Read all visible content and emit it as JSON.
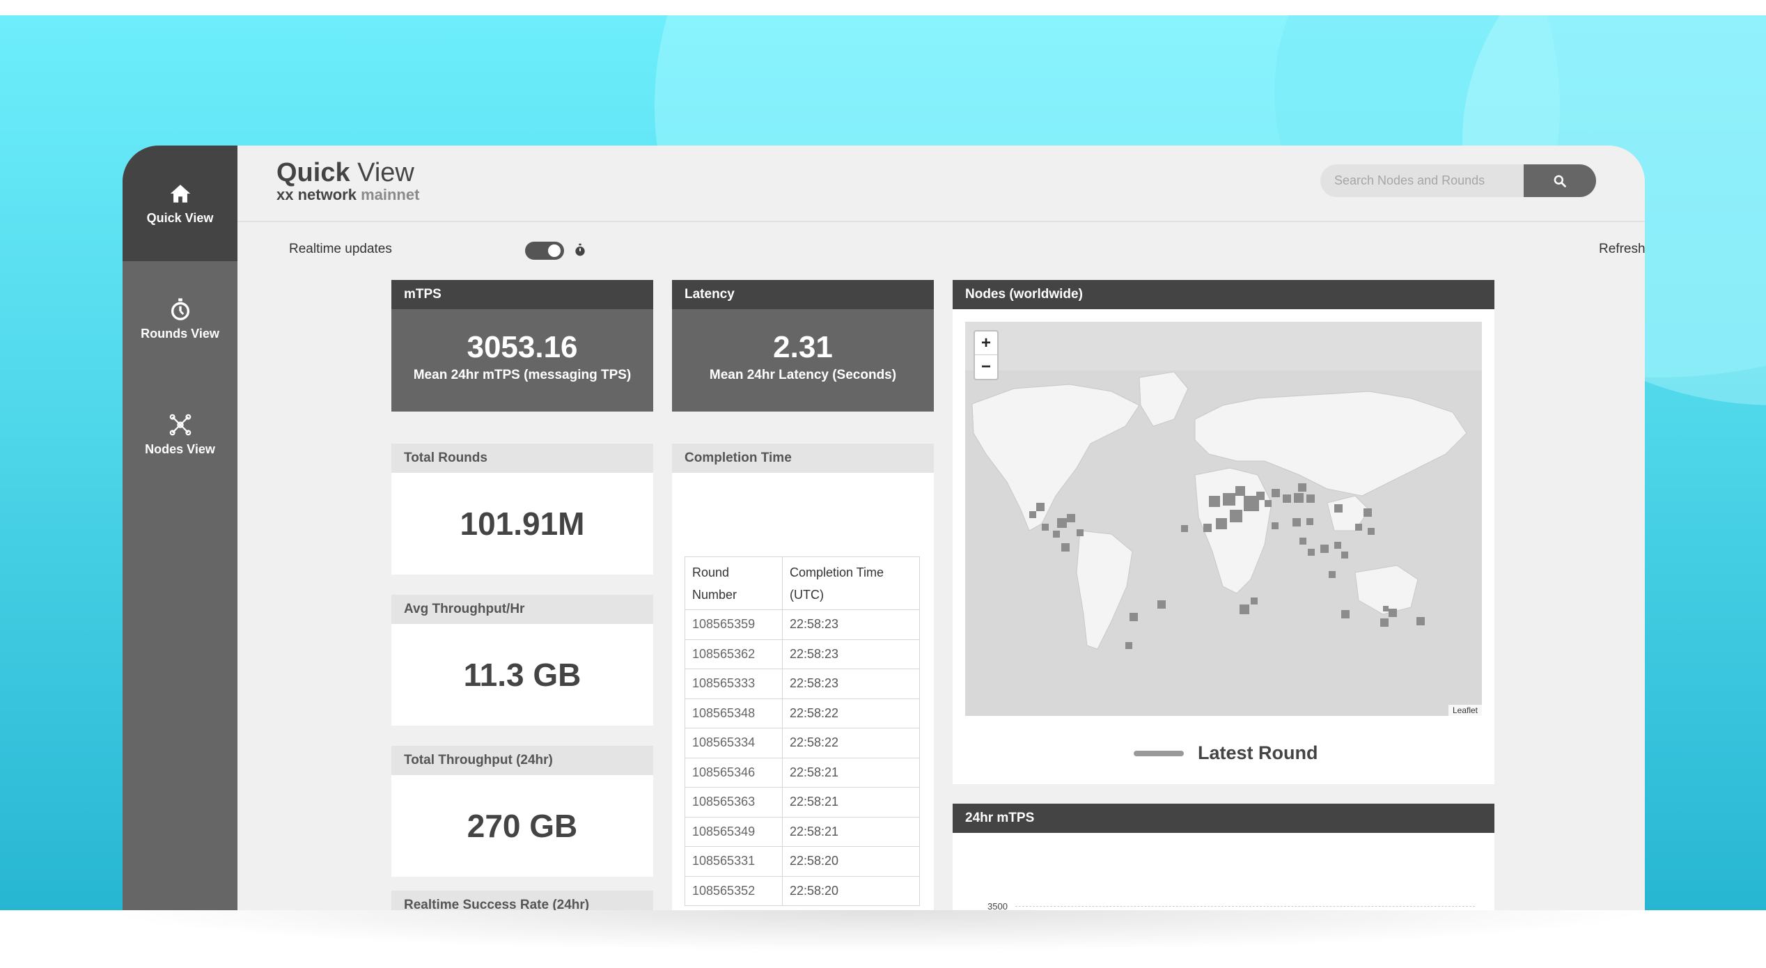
{
  "app": {
    "title_bold": "Quick",
    "title_light": "View",
    "subtitle_network": "xx network",
    "subtitle_env": "mainnet"
  },
  "sidebar": {
    "items": [
      {
        "label": "Quick View",
        "icon": "home-icon",
        "active": true
      },
      {
        "label": "Rounds View",
        "icon": "stopwatch-icon",
        "active": false
      },
      {
        "label": "Nodes View",
        "icon": "nodes-graph-icon",
        "active": false
      }
    ]
  },
  "search": {
    "placeholder": "Search Nodes and Rounds",
    "value": "",
    "icon": "search-icon"
  },
  "toolbar": {
    "realtime_label": "Realtime updates",
    "realtime_on": true,
    "refresh_label": "Refresh"
  },
  "cards": {
    "mtps": {
      "title": "mTPS",
      "value": "3053.16",
      "caption": "Mean 24hr mTPS (messaging TPS)"
    },
    "latency": {
      "title": "Latency",
      "value": "2.31",
      "caption": "Mean 24hr Latency (Seconds)"
    },
    "total_rounds": {
      "title": "Total Rounds",
      "value": "101.91M"
    },
    "avg_throughput": {
      "title": "Avg Throughput/Hr",
      "value": "11.3 GB"
    },
    "total_throughput": {
      "title": "Total Throughput (24hr)",
      "value": "270 GB"
    },
    "success_rate": {
      "title": "Realtime Success Rate (24hr)"
    }
  },
  "completion": {
    "title": "Completion Time",
    "headers": [
      "Round Number",
      "Completion Time (UTC)"
    ],
    "rows": [
      [
        "108565359",
        "22:58:23"
      ],
      [
        "108565362",
        "22:58:23"
      ],
      [
        "108565333",
        "22:58:23"
      ],
      [
        "108565348",
        "22:58:22"
      ],
      [
        "108565334",
        "22:58:22"
      ],
      [
        "108565346",
        "22:58:21"
      ],
      [
        "108565363",
        "22:58:21"
      ],
      [
        "108565349",
        "22:58:21"
      ],
      [
        "108565331",
        "22:58:20"
      ],
      [
        "108565352",
        "22:58:20"
      ]
    ]
  },
  "nodes_map": {
    "title": "Nodes (worldwide)",
    "zoom_in": "+",
    "zoom_out": "−",
    "attribution": "Leaflet",
    "legend": "Latest Round"
  },
  "mtps_chart": {
    "title": "24hr mTPS",
    "y_tick": "3500"
  },
  "colors": {
    "sidebar": "#666666",
    "sidebar_active": "#444444",
    "card_head_dark": "#444444",
    "card_body_dark": "#666666",
    "background_accent": "#4fd7ea"
  }
}
